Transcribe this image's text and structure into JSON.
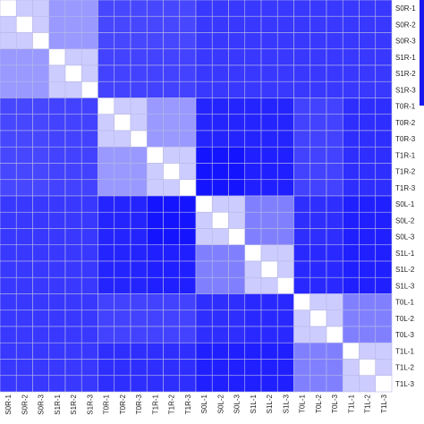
{
  "chart_data": {
    "type": "heatmap",
    "title": "",
    "xlabel": "",
    "ylabel": "",
    "row_labels": [
      "S0R-1",
      "S0R-2",
      "S0R-3",
      "S1R-1",
      "S1R-2",
      "S1R-3",
      "T0R-1",
      "T0R-2",
      "T0R-3",
      "T1R-1",
      "T1R-2",
      "T1R-3",
      "S0L-1",
      "S0L-2",
      "S0L-3",
      "S1L-1",
      "S1L-2",
      "S1L-3",
      "T0L-1",
      "T0L-2",
      "T0L-3",
      "T1L-1",
      "T1L-2",
      "T1L-3"
    ],
    "col_labels": [
      "S0R-1",
      "S0R-2",
      "S0R-3",
      "S1R-1",
      "S1R-2",
      "S1R-3",
      "T0R-1",
      "T0R-2",
      "T0R-3",
      "T1R-1",
      "T1R-2",
      "T1R-3",
      "S0L-1",
      "S0L-2",
      "S0L-3",
      "S1L-1",
      "S1L-2",
      "S1L-3",
      "T0L-1",
      "T0L-2",
      "T0L-3",
      "T1L-1",
      "T1L-2",
      "T1L-3"
    ],
    "group_sizes": [
      3,
      3,
      3,
      3,
      3,
      3,
      3,
      3
    ],
    "group_matrix": [
      [
        0.8,
        0.6,
        0.28,
        0.28,
        0.22,
        0.22,
        0.22,
        0.22
      ],
      [
        0.6,
        0.8,
        0.26,
        0.26,
        0.22,
        0.22,
        0.22,
        0.22
      ],
      [
        0.28,
        0.26,
        0.8,
        0.6,
        0.14,
        0.14,
        0.26,
        0.18
      ],
      [
        0.28,
        0.26,
        0.6,
        0.8,
        0.08,
        0.12,
        0.26,
        0.18
      ],
      [
        0.22,
        0.22,
        0.14,
        0.08,
        0.8,
        0.5,
        0.18,
        0.12
      ],
      [
        0.22,
        0.22,
        0.14,
        0.12,
        0.5,
        0.8,
        0.16,
        0.12
      ],
      [
        0.22,
        0.22,
        0.26,
        0.26,
        0.18,
        0.16,
        0.8,
        0.5
      ],
      [
        0.22,
        0.22,
        0.18,
        0.18,
        0.12,
        0.12,
        0.5,
        0.8
      ]
    ],
    "diagonal_value": 1.0,
    "color_low": "#0000ff",
    "color_high": "#ffffff",
    "grid": true,
    "legend": "right"
  }
}
